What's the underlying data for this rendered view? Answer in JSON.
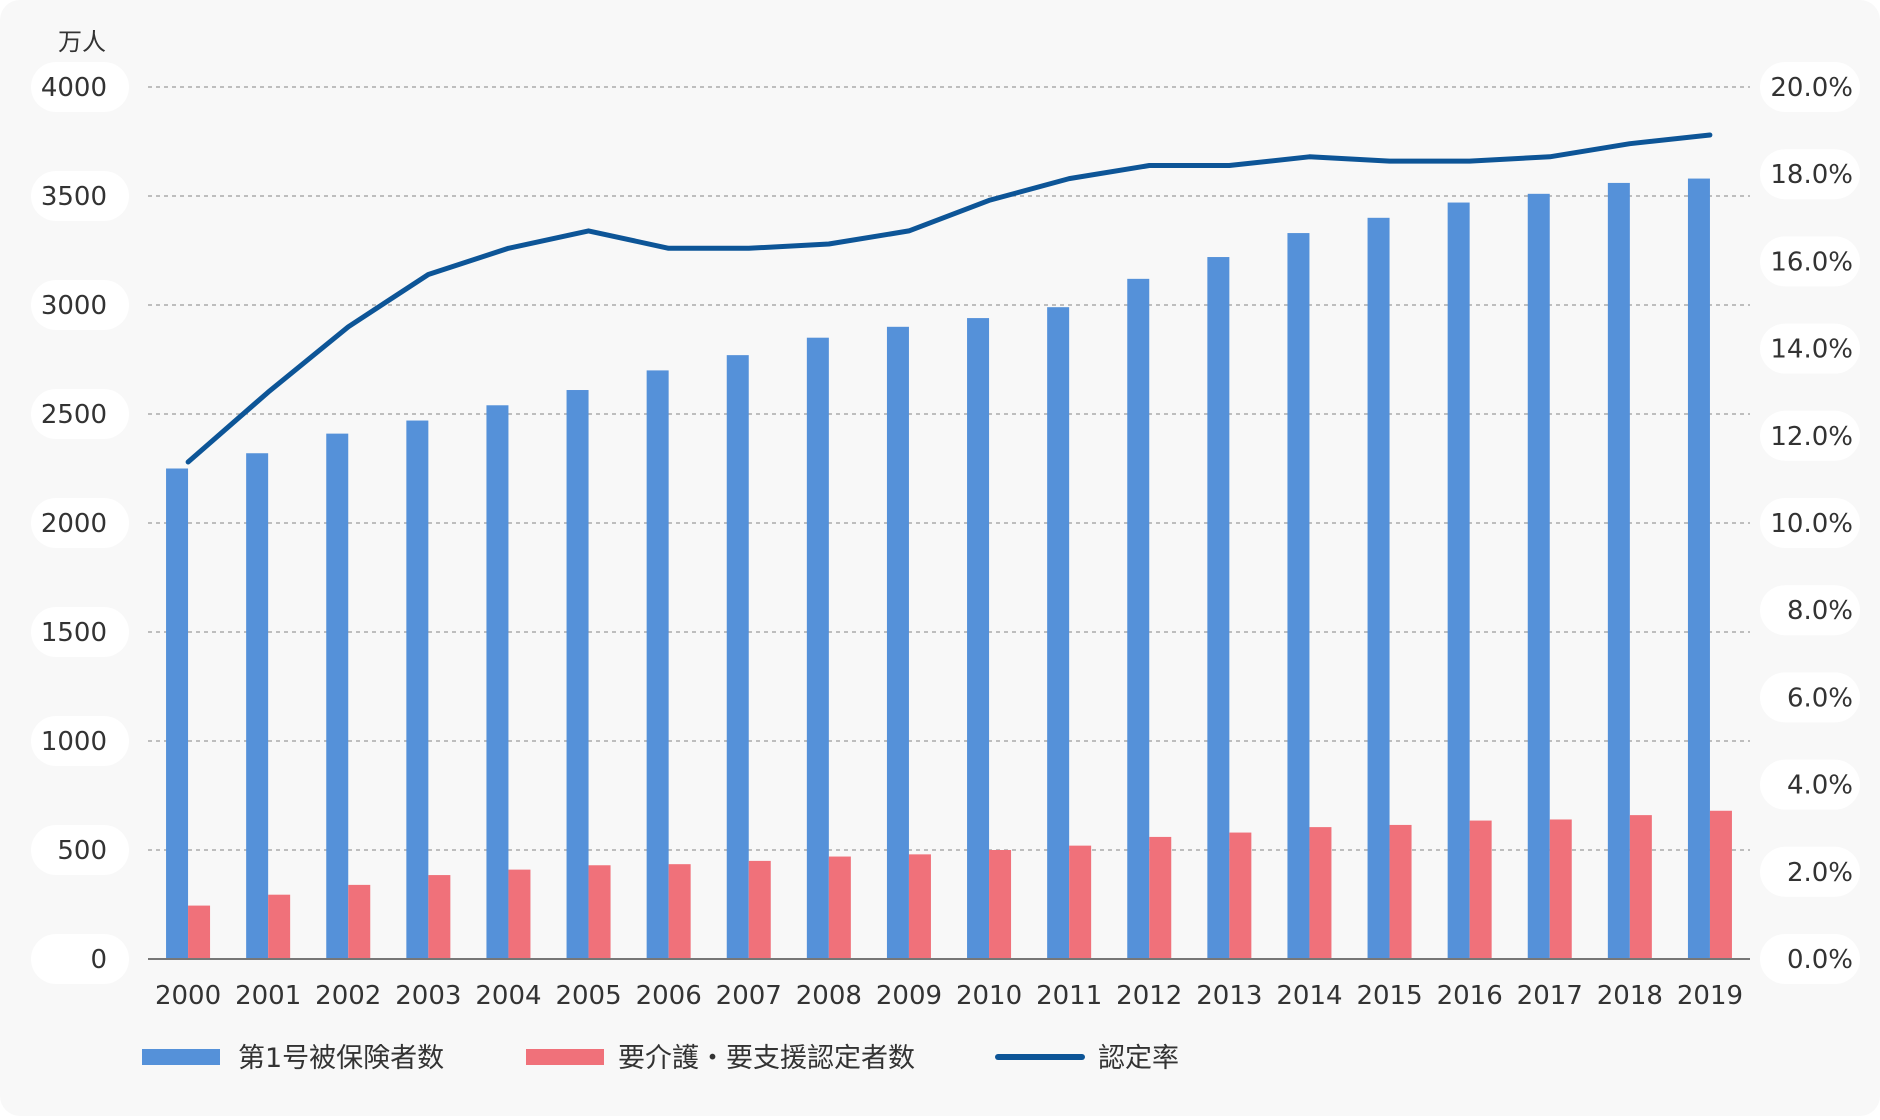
{
  "chart_data": {
    "type": "bar",
    "title": "",
    "y_unit": "万人",
    "categories": [
      "2000",
      "2001",
      "2002",
      "2003",
      "2004",
      "2005",
      "2006",
      "2007",
      "2008",
      "2009",
      "2010",
      "2011",
      "2012",
      "2013",
      "2014",
      "2015",
      "2016",
      "2017",
      "2018",
      "2019"
    ],
    "series": [
      {
        "name": "第1号被保険者数",
        "type": "bar",
        "axis": "left",
        "color": "#5591d9",
        "values": [
          2250,
          2320,
          2410,
          2470,
          2540,
          2610,
          2700,
          2770,
          2850,
          2900,
          2940,
          2990,
          3120,
          3220,
          3330,
          3400,
          3470,
          3510,
          3560,
          3580
        ]
      },
      {
        "name": "要介護・要支援認定者数",
        "type": "bar",
        "axis": "left",
        "color": "#f0717a",
        "values": [
          245,
          295,
          340,
          385,
          410,
          430,
          435,
          450,
          470,
          480,
          500,
          520,
          560,
          580,
          605,
          615,
          635,
          640,
          660,
          680
        ]
      },
      {
        "name": "認定率",
        "type": "line",
        "axis": "right",
        "color": "#0d5597",
        "values": [
          11.4,
          13.0,
          14.5,
          15.7,
          16.3,
          16.7,
          16.3,
          16.3,
          16.4,
          16.7,
          17.4,
          17.9,
          18.2,
          18.2,
          18.4,
          18.3,
          18.3,
          18.4,
          18.7,
          18.9
        ]
      }
    ],
    "y_left": {
      "min": 0,
      "max": 4000,
      "ticks": [
        0,
        500,
        1000,
        1500,
        2000,
        2500,
        3000,
        3500,
        4000
      ]
    },
    "y_right": {
      "min": 0,
      "max": 20,
      "ticks": [
        "0.0%",
        "2.0%",
        "4.0%",
        "6.0%",
        "8.0%",
        "10.0%",
        "12.0%",
        "14.0%",
        "16.0%",
        "18.0%",
        "20.0%"
      ]
    },
    "grid": true,
    "legend_position": "bottom-left"
  }
}
